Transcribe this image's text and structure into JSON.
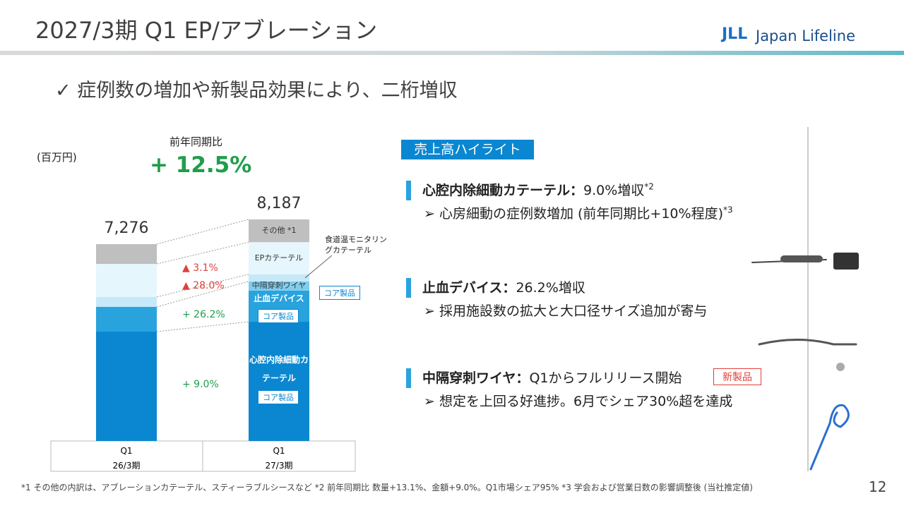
{
  "header": {
    "title": "2027/3期 Q1 EP/アブレーション",
    "logo": "Japan Lifeline",
    "logo_mark": "JLL"
  },
  "subtitle": "✓ 症例数の増加や新製品効果により、二桁増収",
  "chart_data": {
    "type": "stacked-bar",
    "unit": "(百万円)",
    "growth_caption": "前年同期比",
    "growth": "+ 12.5%",
    "categories": [
      "Q1",
      "Q1"
    ],
    "periods": [
      "26/3期",
      "27/3期"
    ],
    "series": [
      {
        "name": "心腔内除細動カテーテル",
        "tag": "コア製品",
        "color": "#0a87d0",
        "values": [
          4042,
          4406
        ]
      },
      {
        "name": "止血デバイス",
        "tag": "コア製品",
        "color": "#29a3de",
        "values": [
          913,
          1152
        ]
      },
      {
        "name": "中隔穿刺ワイヤ",
        "tag": "コア製品",
        "color": "#7fcdef",
        "values": [
          null,
          339
        ]
      },
      {
        "name": "食道温モニタリングカテーテル",
        "color": "#c5e9f8",
        "values": [
          365,
          263
        ]
      },
      {
        "name": "EPカテーテル",
        "color": "#e6f6fd",
        "values": [
          1225,
          1187
        ]
      },
      {
        "name": "その他 *1",
        "color": "#bfbfbf",
        "values": [
          731,
          840
        ]
      }
    ],
    "totals": {
      "values": [
        7276,
        8187
      ],
      "value_labels": [
        "7,276",
        "8,187"
      ]
    },
    "annotations": [
      {
        "text": "▲ 3.1%",
        "color": "#e0403a"
      },
      {
        "text": "▲ 28.0%",
        "color": "#e0403a"
      },
      {
        "text": "+ 26.2%",
        "color": "#1e9e4a"
      },
      {
        "text": "+ 9.0%",
        "color": "#1e9e4a"
      }
    ]
  },
  "highlights": {
    "heading": "売上高ハイライト",
    "items": [
      {
        "title": "心腔内除細動カテーテル：",
        "text": "9.0%増収",
        "note": "*2",
        "bullet": "心房細動の症例数増加 (前年同期比+10%程度)",
        "bullet_note": "*3"
      },
      {
        "title": "止血デバイス：",
        "text": "26.2%増収",
        "bullet": "採用施設数の拡大と大口径サイズ追加が寄与"
      },
      {
        "title": "中隔穿刺ワイヤ：",
        "text": "Q1からフルリリース開始",
        "badge": "新製品",
        "bullet": "想定を上回る好進捗。6月でシェア30%超を達成"
      }
    ]
  },
  "footnote": "*1 その他の内訳は、アブレーションカテーテル、スティーラブルシースなど *2 前年同期比 数量+13.1%、金額+9.0%。Q1市場シェア95% *3 学会および営業日数の影響調整後 (当社推定値)",
  "page": "12"
}
